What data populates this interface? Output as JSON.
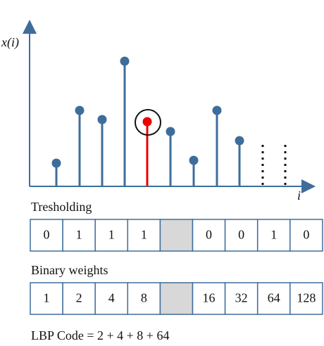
{
  "axis": {
    "y_label": "x(i)",
    "x_label": "i"
  },
  "thresholding": {
    "title": "Tresholding",
    "cells": [
      "0",
      "1",
      "1",
      "1",
      "0",
      "0",
      "1",
      "0"
    ]
  },
  "weights": {
    "title": "Binary weights",
    "cells": [
      "1",
      "2",
      "4",
      "8",
      "16",
      "32",
      "64",
      "128"
    ]
  },
  "formula": "LBP Code = 2 + 4 + 8 + 64"
}
